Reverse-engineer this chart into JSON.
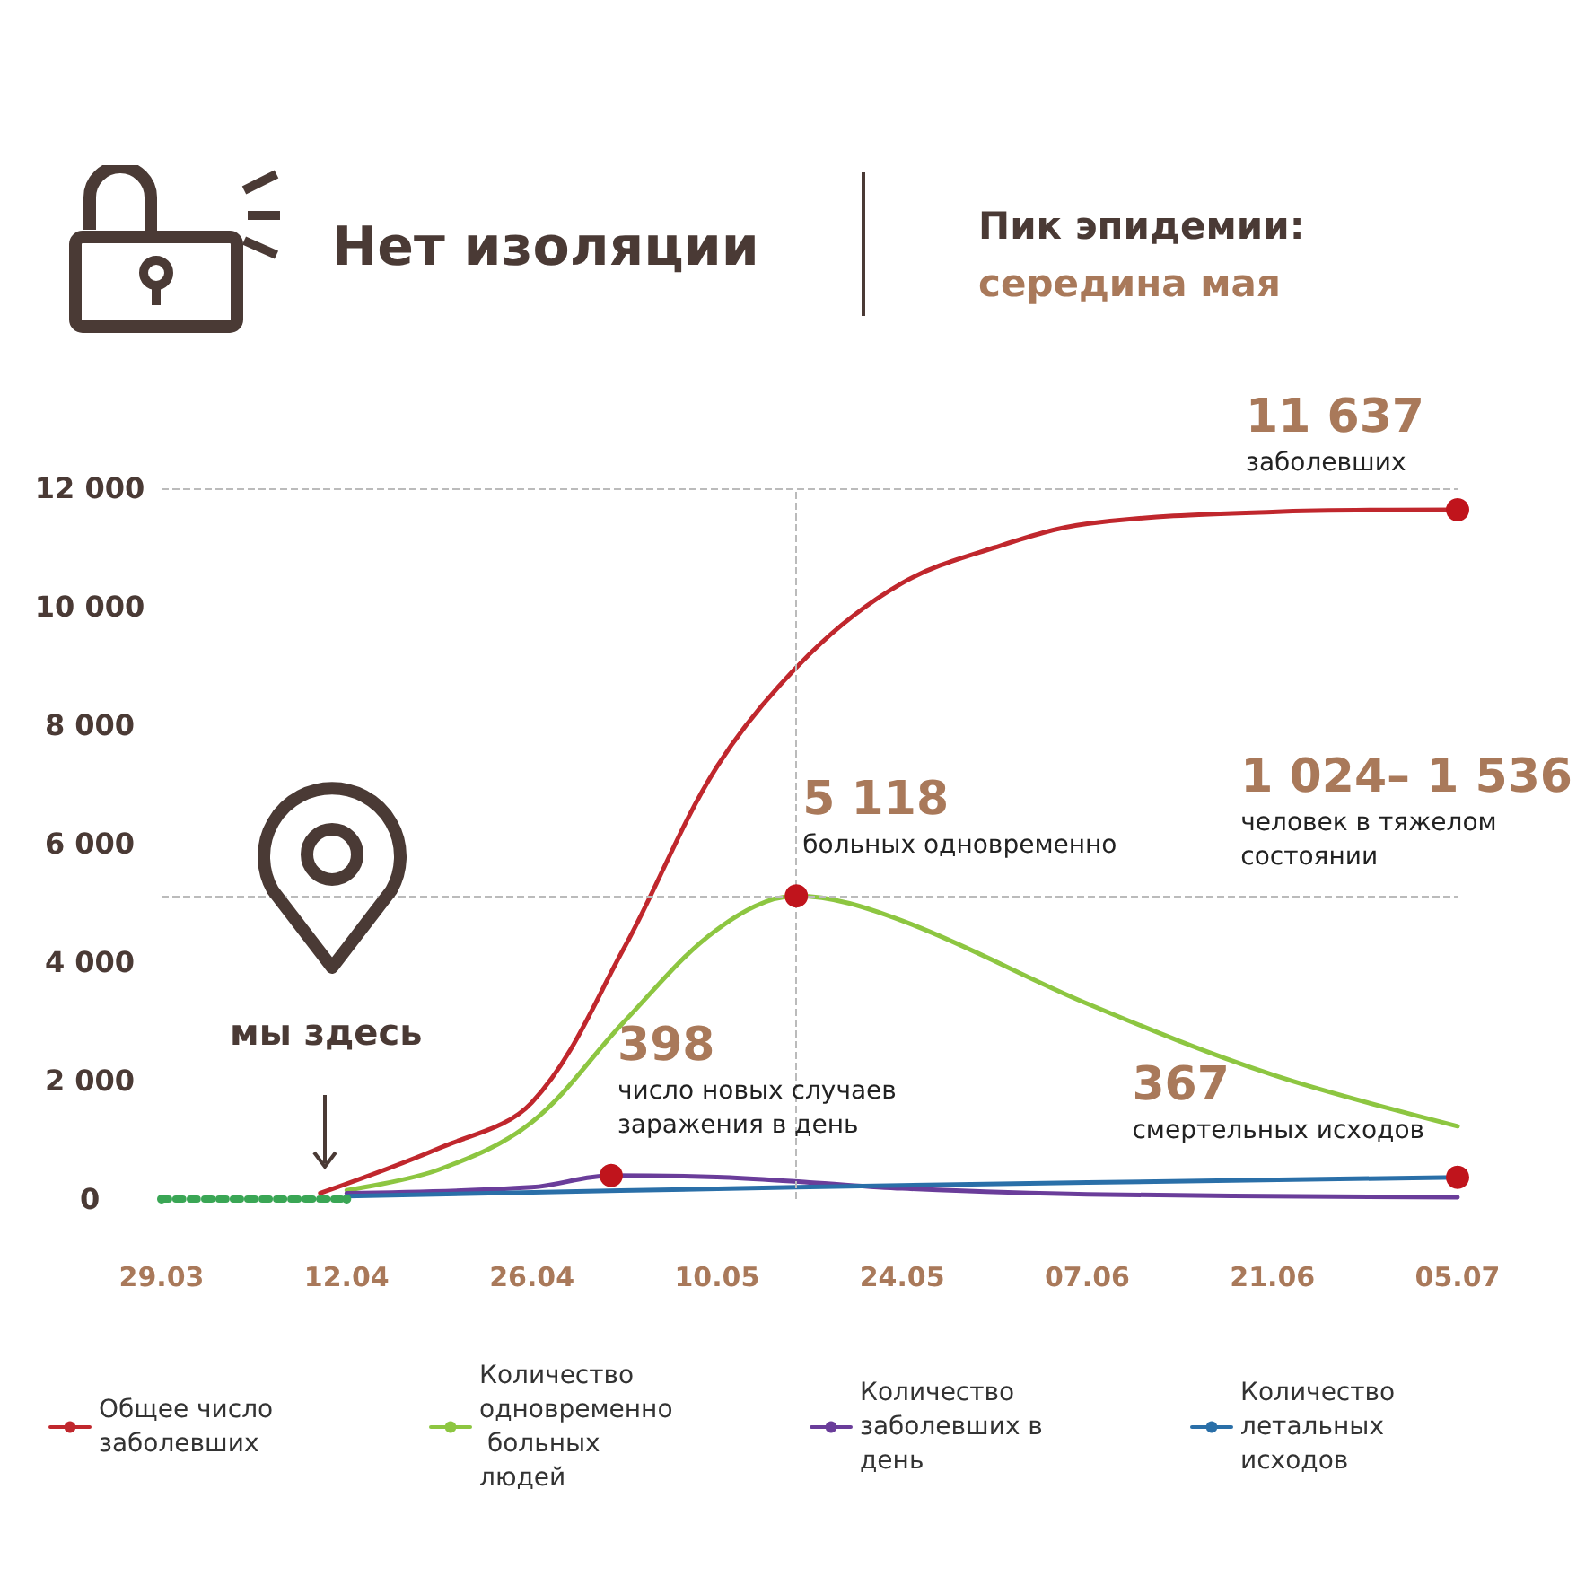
{
  "chart_data": {
    "type": "line",
    "title": "Нет изоляции",
    "subtitle": "Пик эпидемии:\nсередина мая",
    "xlim": [
      "--03-29",
      "--07-05"
    ],
    "xticks": [
      {
        "value": "--03-29",
        "label": "29.03"
      },
      {
        "value": "--04-12",
        "label": "12.04"
      },
      {
        "value": "--04-26",
        "label": "26.04"
      },
      {
        "value": "--05-10",
        "label": "10.05"
      },
      {
        "value": "--05-24",
        "label": "24.05"
      },
      {
        "value": "--06-07",
        "label": "07.06"
      },
      {
        "value": "--06-21",
        "label": "21.06"
      },
      {
        "value": "--07-05",
        "label": "05.07"
      }
    ],
    "ylim": [
      0,
      12000
    ],
    "yticks": [
      {
        "value": 0,
        "label": "0"
      },
      {
        "value": 2000,
        "label": "2 000"
      },
      {
        "value": 4000,
        "label": "4 000"
      },
      {
        "value": 6000,
        "label": "6 000"
      },
      {
        "value": 8000,
        "label": "8 000"
      },
      {
        "value": 10000,
        "label": "10 000"
      },
      {
        "value": 12000,
        "label": "12 000"
      }
    ],
    "grid": false,
    "legend": "bottom",
    "marker": "none",
    "series": [
      {
        "name": "Общее число заболевших",
        "color": "#c0272d",
        "x": [
          "--04-10",
          "--04-19",
          "--04-26",
          "--05-03",
          "--05-10",
          "--05-17",
          "--05-24",
          "--05-31",
          "--06-07",
          "--06-21",
          "--07-05"
        ],
        "values": [
          100,
          860,
          1630,
          4250,
          7300,
          9200,
          10400,
          11000,
          11400,
          11600,
          11637
        ]
      },
      {
        "name": "Количество одновременно больных людей",
        "color": "#8dc641",
        "x": [
          "--04-12",
          "--04-19",
          "--04-26",
          "--05-03",
          "--05-10",
          "--05-16",
          "--05-24",
          "--06-07",
          "--06-21",
          "--07-05"
        ],
        "values": [
          150,
          500,
          1300,
          3000,
          4550,
          5118,
          4700,
          3300,
          2100,
          1230
        ]
      },
      {
        "name": "Количество заболевших в день",
        "color": "#6a3d9a",
        "x": [
          "--04-12",
          "--04-26",
          "--05-02",
          "--05-10",
          "--05-17",
          "--05-24",
          "--06-07",
          "--07-05"
        ],
        "values": [
          100,
          200,
          398,
          370,
          280,
          180,
          80,
          30
        ]
      },
      {
        "name": "Количество летальных исходов",
        "color": "#2a6fa8",
        "x": [
          "--04-12",
          "--05-16",
          "--06-07",
          "--07-05"
        ],
        "values": [
          50,
          200,
          280,
          367
        ]
      },
      {
        "color": "#3aa655",
        "line_style": "dotted",
        "marker": "circle",
        "x": [
          "--03-29",
          "--04-12"
        ],
        "values": [
          0,
          0
        ]
      }
    ],
    "ref_lines": [
      {
        "axis": "y",
        "value": 12000,
        "color": "#bbbbbb",
        "line_style": "dashed"
      },
      {
        "axis": "y",
        "value": 5118,
        "color": "#bbbbbb",
        "line_style": "dashed"
      },
      {
        "axis": "x",
        "value": "--05-16",
        "color": "#bbbbbb",
        "line_style": "dashed"
      }
    ],
    "annotations": [
      {
        "text": "11 637\nзаболевших",
        "x": "--07-05",
        "y": 11637
      },
      {
        "text": "5 118\nбольных одновременно",
        "x": "--05-16",
        "y": 5118
      },
      {
        "text": "398\nчисло новых случаев\nзаражения в день",
        "x": "--05-02",
        "y": 398
      },
      {
        "text": "367\nсмертельных исходов",
        "x": "--07-05",
        "y": 367
      },
      "1 024– 1 536\nчеловек в тяжелом\nсостоянии",
      "мы здесь"
    ]
  }
}
